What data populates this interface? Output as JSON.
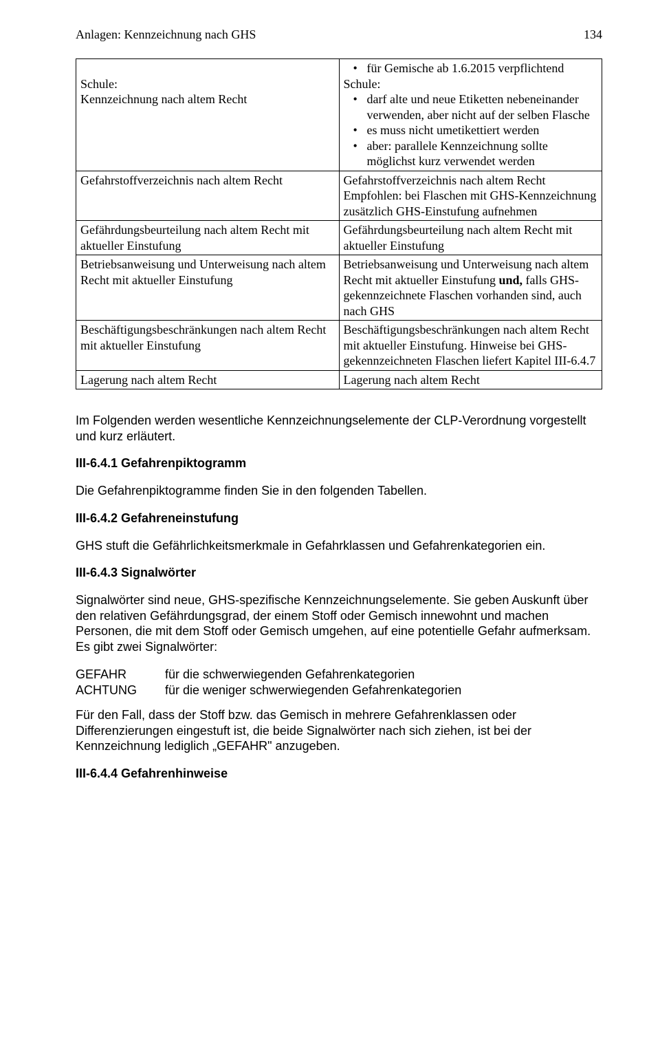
{
  "header": {
    "title": "Anlagen: Kennzeichnung nach GHS",
    "page": "134"
  },
  "table": {
    "rows": [
      {
        "left_lines": [
          "",
          "Schule:",
          "Kennzeichnung nach altem Recht"
        ],
        "right_pre": "Schule:",
        "right_bullets": [
          "für Gemische ab 1.6.2015 verpflichtend",
          "darf alte und neue Etiketten nebeneinander verwenden, aber nicht auf der selben Flasche",
          "es muss nicht umetikettiert werden",
          "aber: parallele Kennzeichnung sollte möglichst kurz verwendet werden"
        ],
        "first_bullet_then_pre": true
      },
      {
        "left": "Gefahrstoffverzeichnis nach altem Recht",
        "right": "Gefahrstoffverzeichnis nach altem Recht Empfohlen: bei Flaschen mit GHS-Kennzeichnung zusätzlich GHS-Einstufung aufnehmen"
      },
      {
        "left": "Gefährdungsbeurteilung nach altem Recht mit aktueller Einstufung",
        "right": "Gefährdungsbeurteilung nach altem Recht mit aktueller Einstufung"
      },
      {
        "left": "Betriebsanweisung und Unterweisung nach altem Recht mit aktueller Einstufung",
        "right_html": "Betriebsanweisung und Unterweisung nach altem Recht mit aktueller Einstufung <b>und,</b> falls GHS-gekennzeichnete Flaschen vorhanden sind, auch nach GHS"
      },
      {
        "left": "Beschäftigungsbeschränkungen nach altem Recht mit aktueller Einstufung",
        "right": "Beschäftigungsbeschränkungen nach altem Recht mit aktueller Einstufung. Hinweise bei GHS-gekennzeichneten Flaschen liefert Kapitel III-6.4.7"
      },
      {
        "left": "Lagerung nach altem Recht",
        "right": "Lagerung nach altem Recht"
      }
    ]
  },
  "body": {
    "p1": "Im Folgenden werden wesentliche Kennzeichnungselemente der CLP-Verordnung vorgestellt und kurz erläutert.",
    "h1": "III-6.4.1 Gefahrenpiktogramm",
    "p2": "Die Gefahrenpiktogramme finden Sie in den folgenden Tabellen.",
    "h2": "III-6.4.2 Gefahreneinstufung",
    "p3": "GHS stuft die Gefährlichkeitsmerkmale in Gefahrklassen und Gefahrenkategorien ein.",
    "h3": "III-6.4.3 Signalwörter",
    "p4": "Signalwörter sind neue, GHS-spezifische Kennzeichnungselemente. Sie geben Auskunft über den relativen Gefährdungsgrad, der einem Stoff oder Gemisch innewohnt und machen Personen, die mit dem Stoff oder Gemisch umgehen, auf eine potentielle Gefahr aufmerksam. Es gibt zwei Signalwörter:",
    "sig": [
      {
        "label": "GEFAHR",
        "desc": "für die schwerwiegenden Gefahrenkategorien"
      },
      {
        "label": "ACHTUNG",
        "desc": "für die weniger schwerwiegenden Gefahrenkategorien"
      }
    ],
    "p5": "Für den Fall, dass der Stoff bzw. das Gemisch in mehrere Gefahrenklassen oder Differenzierungen eingestuft ist, die beide Signalwörter nach sich ziehen, ist bei der Kennzeichnung lediglich „GEFAHR\" anzugeben.",
    "h4": "III-6.4.4 Gefahrenhinweise"
  }
}
